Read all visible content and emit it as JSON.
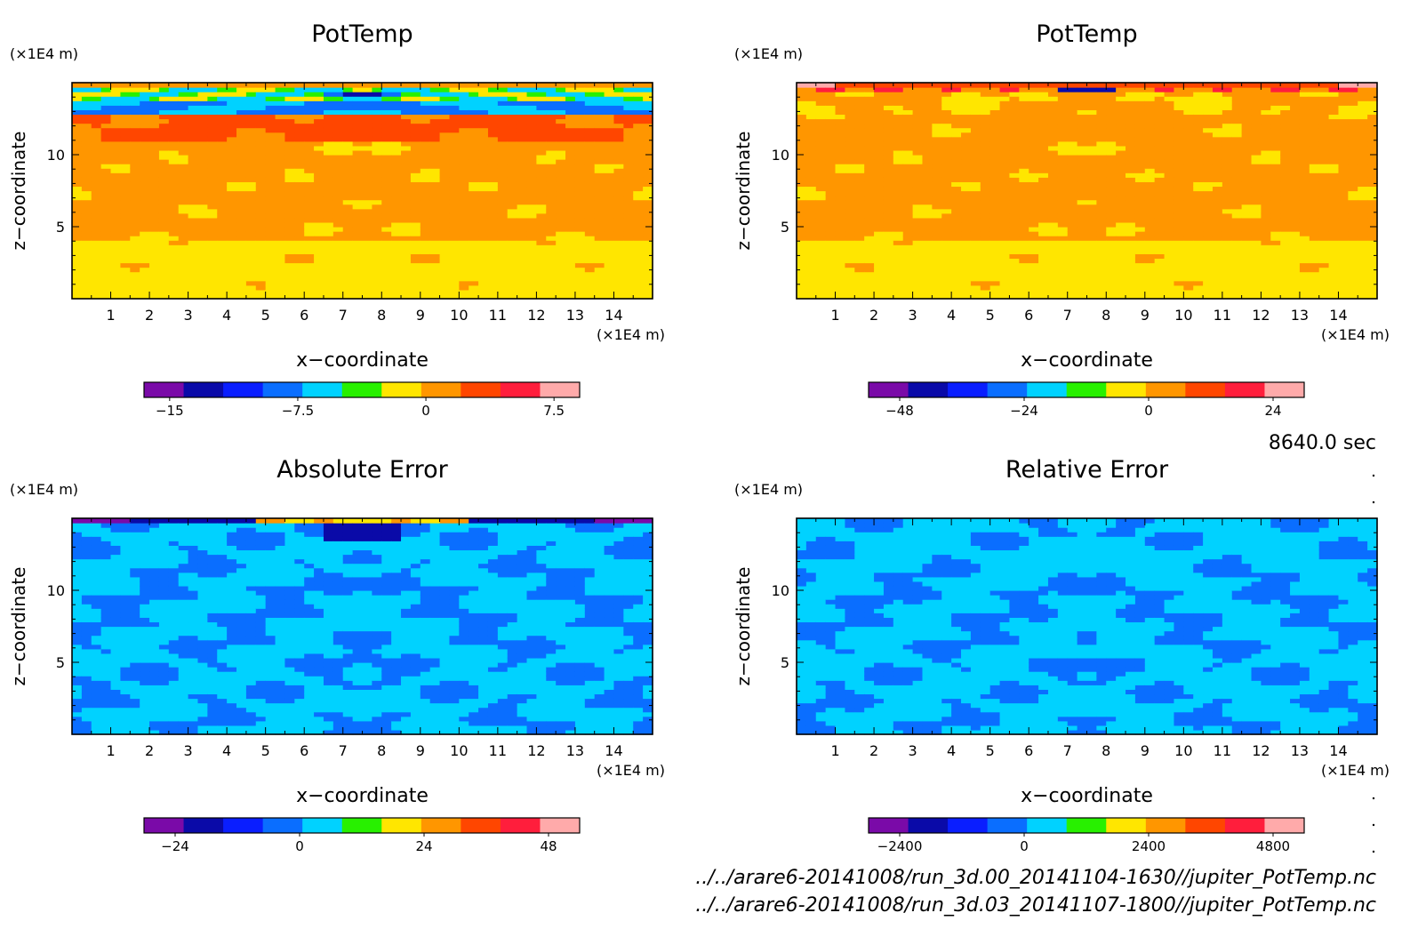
{
  "time_label": "8640.0 sec",
  "source_files": [
    "../../arare6-20141008/run_3d.00_20141104-1630//jupiter_PotTemp.nc",
    "../../arare6-20141008/run_3d.03_20141107-1800//jupiter_PotTemp.nc"
  ],
  "palette": [
    "#7a0aa8",
    "#0a0aa8",
    "#0a1eff",
    "#0a6eff",
    "#00d2ff",
    "#28f000",
    "#ffe600",
    "#ff9600",
    "#ff4600",
    "#ff1e3c",
    "#ffaaaa"
  ],
  "chart_data": [
    {
      "type": "heatmap",
      "title": "PotTemp",
      "xlabel": "x−coordinate",
      "ylabel": "z−coordinate",
      "x_unit": "(×1E4 m)",
      "y_unit": "(×1E4 m)",
      "xlim": [
        0,
        15
      ],
      "ylim": [
        0,
        15
      ],
      "x_ticks": [
        "1",
        "2",
        "3",
        "4",
        "5",
        "6",
        "7",
        "8",
        "9",
        "10",
        "11",
        "12",
        "13",
        "14"
      ],
      "y_ticks": [
        "5",
        "10"
      ],
      "colorbar": {
        "ticks": [
          {
            "value": -15,
            "label": "−15"
          },
          {
            "value": -7.5,
            "label": "−7.5"
          },
          {
            "value": 0,
            "label": "0"
          },
          {
            "value": 7.5,
            "label": "7.5"
          }
        ],
        "range": [
          -16.5,
          9
        ]
      },
      "pattern": "pot1"
    },
    {
      "type": "heatmap",
      "title": "PotTemp",
      "xlabel": "x−coordinate",
      "ylabel": "z−coordinate",
      "x_unit": "(×1E4 m)",
      "y_unit": "(×1E4 m)",
      "xlim": [
        0,
        15
      ],
      "ylim": [
        0,
        15
      ],
      "x_ticks": [
        "1",
        "2",
        "3",
        "4",
        "5",
        "6",
        "7",
        "8",
        "9",
        "10",
        "11",
        "12",
        "13",
        "14"
      ],
      "y_ticks": [
        "5",
        "10"
      ],
      "colorbar": {
        "ticks": [
          {
            "value": -48,
            "label": "−48"
          },
          {
            "value": -24,
            "label": "−24"
          },
          {
            "value": 0,
            "label": "0"
          },
          {
            "value": 24,
            "label": "24"
          }
        ],
        "range": [
          -54,
          30
        ]
      },
      "pattern": "pot2"
    },
    {
      "type": "heatmap",
      "title": "Absolute Error",
      "xlabel": "x−coordinate",
      "ylabel": "z−coordinate",
      "x_unit": "(×1E4 m)",
      "y_unit": "(×1E4 m)",
      "xlim": [
        0,
        15
      ],
      "ylim": [
        0,
        15
      ],
      "x_ticks": [
        "1",
        "2",
        "3",
        "4",
        "5",
        "6",
        "7",
        "8",
        "9",
        "10",
        "11",
        "12",
        "13",
        "14"
      ],
      "y_ticks": [
        "5",
        "10"
      ],
      "colorbar": {
        "ticks": [
          {
            "value": -24,
            "label": "−24"
          },
          {
            "value": 0,
            "label": "0"
          },
          {
            "value": 24,
            "label": "24"
          },
          {
            "value": 48,
            "label": "48"
          }
        ],
        "range": [
          -30,
          54
        ]
      },
      "pattern": "abs"
    },
    {
      "type": "heatmap",
      "title": "Relative Error",
      "xlabel": "x−coordinate",
      "ylabel": "z−coordinate",
      "x_unit": "(×1E4 m)",
      "y_unit": "(×1E4 m)",
      "xlim": [
        0,
        15
      ],
      "ylim": [
        0,
        15
      ],
      "x_ticks": [
        "1",
        "2",
        "3",
        "4",
        "5",
        "6",
        "7",
        "8",
        "9",
        "10",
        "11",
        "12",
        "13",
        "14"
      ],
      "y_ticks": [
        "5",
        "10"
      ],
      "colorbar": {
        "ticks": [
          {
            "value": -2400,
            "label": "−2400"
          },
          {
            "value": 0,
            "label": "0"
          },
          {
            "value": 2400,
            "label": "2400"
          },
          {
            "value": 4800,
            "label": "4800"
          }
        ],
        "range": [
          -3000,
          5400
        ]
      },
      "pattern": "rel"
    }
  ]
}
